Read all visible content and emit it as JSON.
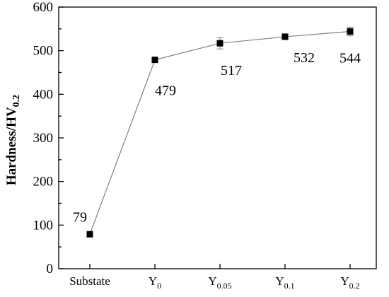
{
  "chart_data": {
    "type": "line",
    "categories": [
      "Substate",
      "Y0",
      "Y0.05",
      "Y0.1",
      "Y0.2"
    ],
    "category_labels": [
      {
        "base": "Substate",
        "sub": ""
      },
      {
        "base": "Y",
        "sub": "0"
      },
      {
        "base": "Y",
        "sub": "0.05"
      },
      {
        "base": "Y",
        "sub": "0.1"
      },
      {
        "base": "Y",
        "sub": "0.2"
      }
    ],
    "series": [
      {
        "values": [
          79,
          479,
          517,
          532,
          544
        ],
        "error": [
          0,
          3,
          13,
          5,
          10
        ],
        "color": "#000000",
        "marker": "square"
      }
    ],
    "data_labels": [
      "79",
      "479",
      "517",
      "532",
      "544"
    ],
    "ylabel": {
      "base": "Hardness/HV",
      "sub": "0.2"
    },
    "ylim": [
      0,
      600
    ],
    "yticks": [
      0,
      100,
      200,
      300,
      400,
      500,
      600
    ],
    "grid": false,
    "line_color": "#808080"
  }
}
